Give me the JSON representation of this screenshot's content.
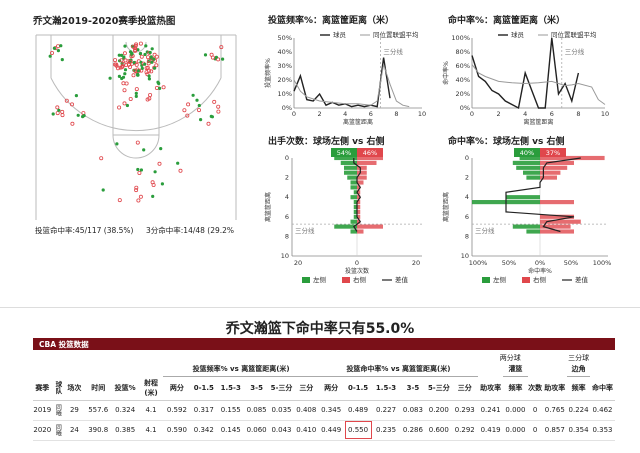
{
  "colors": {
    "made": "#2a9d3c",
    "missed": "#e0474c",
    "maroon": "#7a1018",
    "line": "#222222",
    "ref": "#999999",
    "highlight": "#e0474c"
  },
  "heatmap": {
    "title": "乔文瀚2019-2020赛季投篮热图",
    "summary_left": "投篮命中率:45/117 (38.5%)",
    "summary_right": "3分命中率:14/48 (29.2%"
  },
  "headline": "乔文瀚篮下命中率只有55.0%",
  "table": {
    "section_title": "CBA 投篮数据",
    "group_two": "两分球",
    "group_three": "三分球",
    "group_freq": "投篮频率% vs 离篮筐距离(米)",
    "group_pct": "投篮命中率% vs 离篮筐距离(米)",
    "sub_dunk": "灌篮",
    "sub_corner": "边角",
    "columns": [
      "赛季",
      "球队",
      "场次",
      "时间",
      "投篮%",
      "射程(米)",
      "两分",
      "0-1.5",
      "1.5-3",
      "3-5",
      "5-三分",
      "三分",
      "两分",
      "0-1.5",
      "1.5-3",
      "3-5",
      "5-三分",
      "三分",
      "助攻率",
      "频率",
      "次数",
      "助攻率",
      "频率",
      "命中率"
    ],
    "rows": [
      [
        "2019",
        "同曦",
        "29",
        "557.6",
        "0.324",
        "4.1",
        "0.592",
        "0.317",
        "0.155",
        "0.085",
        "0.035",
        "0.408",
        "0.345",
        "0.489",
        "0.227",
        "0.083",
        "0.200",
        "0.293",
        "0.241",
        "0.000",
        "0",
        "0.765",
        "0.224",
        "0.462"
      ],
      [
        "2020",
        "同曦",
        "24",
        "390.8",
        "0.385",
        "4.1",
        "0.590",
        "0.342",
        "0.145",
        "0.060",
        "0.043",
        "0.410",
        "0.449",
        "0.550",
        "0.235",
        "0.286",
        "0.600",
        "0.292",
        "0.419",
        "0.000",
        "0",
        "0.857",
        "0.354",
        "0.353"
      ]
    ]
  },
  "chart_data": [
    {
      "type": "line",
      "title": "投篮频率%：离篮筐距离（米）",
      "xlabel": "离篮筐距离",
      "ylabel": "投篮频率%",
      "xlim": [
        0,
        10
      ],
      "ylim": [
        0,
        0.5
      ],
      "x_ticks": [
        "0",
        "2",
        "4",
        "6",
        "8",
        "10"
      ],
      "y_ticks": [
        "0%",
        "10%",
        "20%",
        "30%",
        "40%",
        "50%"
      ],
      "annotation": "三分线",
      "three_line_x": 6.75,
      "legend": [
        "球员",
        "同位置联盟平均"
      ],
      "series": [
        {
          "name": "球员",
          "x": [
            0,
            0.5,
            1,
            1.5,
            2,
            2.5,
            3,
            3.5,
            4,
            4.5,
            5,
            5.5,
            6,
            6.5,
            7,
            7.5
          ],
          "y": [
            0.12,
            0.23,
            0.06,
            0.05,
            0.1,
            0.02,
            0.04,
            0.02,
            0.03,
            0.01,
            0.02,
            0.01,
            0.02,
            0.01,
            0.36,
            0.07
          ]
        },
        {
          "name": "同位置联盟平均",
          "x": [
            0,
            0.5,
            1,
            2,
            3,
            4,
            5,
            6,
            6.5,
            7,
            7.5,
            8,
            8.5,
            9
          ],
          "y": [
            0.2,
            0.12,
            0.08,
            0.05,
            0.04,
            0.03,
            0.03,
            0.02,
            0.05,
            0.31,
            0.17,
            0.05,
            0.02,
            0.01
          ]
        }
      ]
    },
    {
      "type": "line",
      "title": "命中率%：离篮筐距离（米）",
      "xlabel": "离篮筐距离",
      "ylabel": "命中率%",
      "xlim": [
        0,
        10
      ],
      "ylim": [
        0,
        1
      ],
      "x_ticks": [
        "0",
        "2",
        "4",
        "6",
        "8",
        "10"
      ],
      "y_ticks": [
        "0%",
        "20%",
        "40%",
        "60%",
        "80%",
        "100%"
      ],
      "annotation": "三分线",
      "three_line_x": 6.75,
      "legend": [
        "球员",
        "同位置联盟平均"
      ],
      "series": [
        {
          "name": "球员",
          "x": [
            0,
            0.5,
            1,
            1.5,
            2,
            2.5,
            3,
            3.5,
            4,
            4.5,
            5,
            5.5,
            6,
            6.5,
            7,
            7.5,
            8
          ],
          "y": [
            0.75,
            0.45,
            0.38,
            0.25,
            0.2,
            0.1,
            0.05,
            0,
            0.5,
            0.25,
            0,
            0,
            1.0,
            0.2,
            0.35,
            0.1,
            0.5
          ]
        },
        {
          "name": "同位置联盟平均",
          "x": [
            0,
            0.5,
            1,
            2,
            3,
            4,
            5,
            6,
            6.5,
            7,
            7.5,
            8,
            9,
            9.5,
            10
          ],
          "y": [
            0.62,
            0.5,
            0.45,
            0.38,
            0.36,
            0.35,
            0.36,
            0.38,
            0.35,
            0.32,
            0.33,
            0.35,
            0.3,
            0.12,
            0.05
          ]
        }
      ]
    },
    {
      "type": "bar",
      "title": "出手次数：球场左侧 vs 右侧",
      "xlabel": "投篮次数",
      "ylabel": "离篮筐距离",
      "xlim": [
        -20,
        20
      ],
      "ylim": [
        0,
        10
      ],
      "x_ticks": [
        "20",
        "0",
        "20"
      ],
      "y_ticks": [
        "0",
        "2",
        "4",
        "6",
        "8",
        "10"
      ],
      "annotation": "三分线",
      "three_line_y": 6.75,
      "left_pct": "54%",
      "right_pct": "46%",
      "legend": [
        "左侧",
        "右侧",
        "差值"
      ],
      "series": [
        {
          "name": "左侧",
          "y": [
            0,
            0.5,
            1,
            1.5,
            2,
            2.5,
            3,
            3.5,
            4,
            4.5,
            5,
            5.5,
            6,
            6.5,
            7,
            7.5
          ],
          "values": [
            7,
            5,
            4,
            4,
            3,
            2,
            2,
            1,
            2,
            1,
            1,
            1,
            1,
            2,
            7,
            2
          ]
        },
        {
          "name": "右侧",
          "y": [
            0,
            0.5,
            1,
            1.5,
            2,
            2.5,
            3,
            3.5,
            4,
            4.5,
            5,
            5.5,
            6,
            6.5,
            7,
            7.5
          ],
          "values": [
            8,
            6,
            3,
            3,
            3,
            2,
            1,
            1,
            1,
            1,
            1,
            1,
            1,
            1,
            8,
            2
          ]
        },
        {
          "name": "差值",
          "y": [
            0,
            0.5,
            1,
            1.5,
            2,
            2.5,
            3,
            3.5,
            4,
            4.5,
            5,
            5.5,
            6,
            6.5,
            7,
            7.5
          ],
          "values": [
            -1,
            -1,
            1,
            1,
            0,
            0,
            1,
            0,
            1,
            0,
            0,
            0,
            0,
            1,
            -1,
            0
          ]
        }
      ]
    },
    {
      "type": "bar",
      "title": "命中率%：球场左侧 vs 右侧",
      "xlabel": "命中率%",
      "ylabel": "离篮筐距离",
      "xlim": [
        -1,
        1
      ],
      "ylim": [
        0,
        10
      ],
      "x_ticks": [
        "100%",
        "50%",
        "0%",
        "50%",
        "100%"
      ],
      "y_ticks": [
        "0",
        "2",
        "4",
        "6",
        "8",
        "10"
      ],
      "annotation": "三分线",
      "three_line_y": 6.75,
      "left_pct": "40%",
      "right_pct": "37%",
      "legend": [
        "左侧",
        "右侧",
        "差值"
      ],
      "series": [
        {
          "name": "左侧",
          "y": [
            0,
            0.5,
            1,
            1.5,
            2,
            2.5,
            3,
            3.5,
            4,
            4.5,
            5,
            5.5,
            6,
            6.5,
            7,
            7.5
          ],
          "values": [
            0.3,
            0.4,
            0.35,
            0.25,
            0.2,
            0,
            0,
            0,
            0.5,
            1.0,
            0,
            0,
            0,
            0,
            0.4,
            0.2
          ]
        },
        {
          "name": "右侧",
          "y": [
            0,
            0.5,
            1,
            1.5,
            2,
            2.5,
            3,
            3.5,
            4,
            4.5,
            5,
            5.5,
            6,
            6.5,
            7,
            7.5
          ],
          "values": [
            0.95,
            0.5,
            0.4,
            0.3,
            0.25,
            0,
            0,
            0,
            0,
            0.5,
            0,
            0,
            0.5,
            0.6,
            0.45,
            0.5
          ]
        },
        {
          "name": "差值",
          "y": [
            0,
            0.5,
            1,
            1.5,
            2,
            2.5,
            3,
            3.5,
            4,
            4.5,
            5,
            5.5,
            6,
            6.5,
            7,
            7.5
          ],
          "values": [
            0.6,
            0.1,
            0.05,
            0.05,
            0.05,
            0,
            0,
            -0.5,
            -0.5,
            -0.5,
            -0.5,
            -0.5,
            0.5,
            0.1,
            0.05,
            0.3
          ]
        }
      ]
    }
  ]
}
